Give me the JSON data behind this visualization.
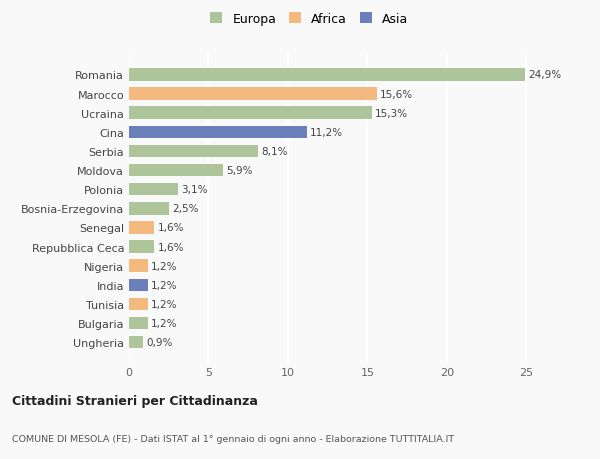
{
  "countries": [
    "Romania",
    "Marocco",
    "Ucraina",
    "Cina",
    "Serbia",
    "Moldova",
    "Polonia",
    "Bosnia-Erzegovina",
    "Senegal",
    "Repubblica Ceca",
    "Nigeria",
    "India",
    "Tunisia",
    "Bulgaria",
    "Ungheria"
  ],
  "values": [
    24.9,
    15.6,
    15.3,
    11.2,
    8.1,
    5.9,
    3.1,
    2.5,
    1.6,
    1.6,
    1.2,
    1.2,
    1.2,
    1.2,
    0.9
  ],
  "labels": [
    "24,9%",
    "15,6%",
    "15,3%",
    "11,2%",
    "8,1%",
    "5,9%",
    "3,1%",
    "2,5%",
    "1,6%",
    "1,6%",
    "1,2%",
    "1,2%",
    "1,2%",
    "1,2%",
    "0,9%"
  ],
  "continent": [
    "Europa",
    "Africa",
    "Europa",
    "Asia",
    "Europa",
    "Europa",
    "Europa",
    "Europa",
    "Africa",
    "Europa",
    "Africa",
    "Asia",
    "Africa",
    "Europa",
    "Europa"
  ],
  "colors": {
    "Europa": "#aec49a",
    "Africa": "#f4b97f",
    "Asia": "#6b7fbb"
  },
  "title": "Cittadini Stranieri per Cittadinanza",
  "subtitle": "COMUNE DI MESOLA (FE) - Dati ISTAT al 1° gennaio di ogni anno - Elaborazione TUTTITALIA.IT",
  "xlim_max": 27,
  "background_color": "#f9f9f9",
  "bar_height": 0.65
}
